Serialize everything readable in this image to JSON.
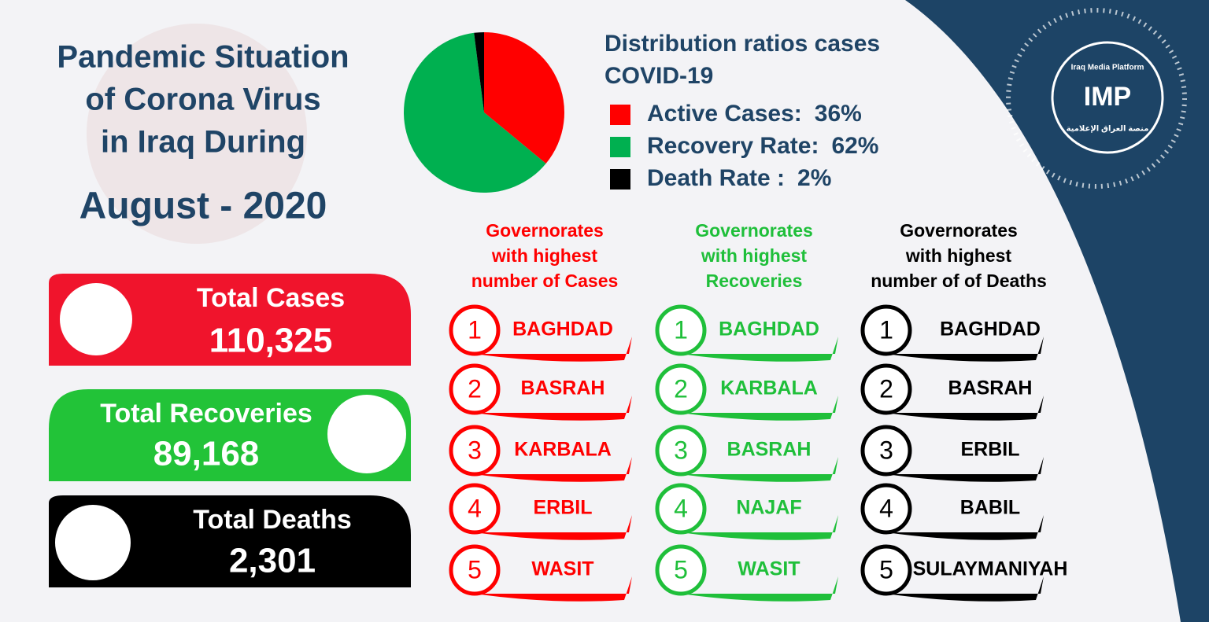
{
  "title": {
    "lines": [
      "Pandemic Situation",
      "of Corona Virus",
      "in Iraq During"
    ],
    "period": "August - 2020"
  },
  "logo": {
    "name": "IMP",
    "caption": "Iraq Media Platform",
    "arabic": "منصة العراق الإعلامية"
  },
  "stats": [
    {
      "label": "Total Cases",
      "value": "110,325"
    },
    {
      "label": "Total Recoveries",
      "value": "89,168"
    },
    {
      "label": "Total Deaths",
      "value": "2,301"
    }
  ],
  "chart_data": {
    "type": "pie",
    "title": "Distribution ratios cases COVID-19",
    "categories": [
      "Active Cases:",
      "Recovery Rate:",
      "Death Rate :"
    ],
    "values": [
      36,
      62,
      2
    ],
    "value_labels": [
      "36%",
      "62%",
      "2%"
    ],
    "colors": [
      "#ff0000",
      "#00b050",
      "#000000"
    ]
  },
  "rankings": [
    {
      "title": [
        "Governorates",
        "with highest",
        "number of Cases"
      ],
      "color": "#ff0000",
      "items": [
        {
          "rank": 1,
          "name": "BAGHDAD"
        },
        {
          "rank": 2,
          "name": "BASRAH"
        },
        {
          "rank": 3,
          "name": "KARBALA"
        },
        {
          "rank": 4,
          "name": "ERBIL"
        },
        {
          "rank": 5,
          "name": "WASIT"
        }
      ]
    },
    {
      "title": [
        "Governorates",
        "with highest",
        "Recoveries"
      ],
      "color": "#1fbf3a",
      "items": [
        {
          "rank": 1,
          "name": "BAGHDAD"
        },
        {
          "rank": 2,
          "name": "KARBALA"
        },
        {
          "rank": 3,
          "name": "BASRAH"
        },
        {
          "rank": 4,
          "name": "NAJAF"
        },
        {
          "rank": 5,
          "name": "WASIT"
        }
      ]
    },
    {
      "title": [
        "Governorates",
        "with highest",
        "number of of Deaths"
      ],
      "color": "#000000",
      "items": [
        {
          "rank": 1,
          "name": "BAGHDAD"
        },
        {
          "rank": 2,
          "name": "BASRAH"
        },
        {
          "rank": 3,
          "name": "ERBIL"
        },
        {
          "rank": 4,
          "name": "BABIL"
        },
        {
          "rank": 5,
          "name": "SULAYMANIYAH"
        }
      ]
    }
  ]
}
